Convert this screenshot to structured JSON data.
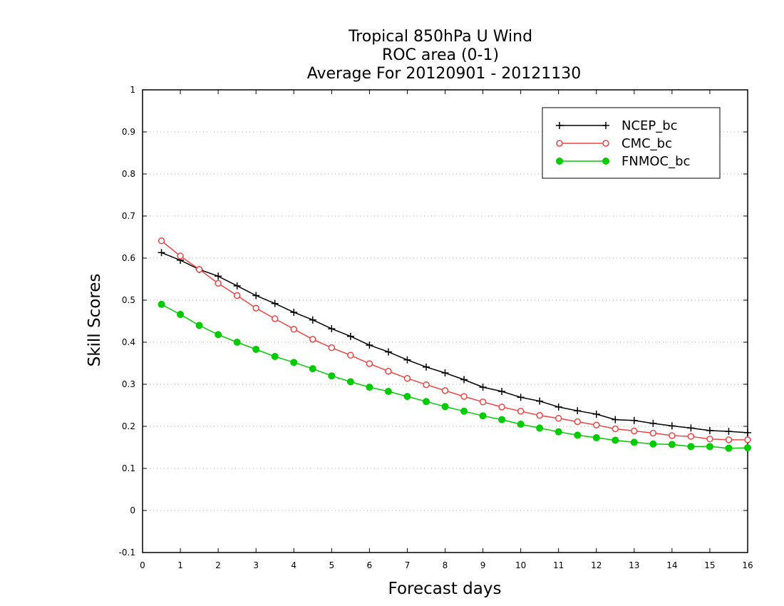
{
  "chart_data": {
    "type": "line",
    "title_lines": [
      "Tropical 850hPa U Wind",
      "ROC area (0-1)",
      "Average For 20120901 - 20121130"
    ],
    "xlabel": "Forecast days",
    "ylabel": "Skill Scores",
    "xlim": [
      0,
      16
    ],
    "ylim": [
      -0.1,
      1
    ],
    "xticks": [
      "0",
      "1",
      "2",
      "3",
      "4",
      "5",
      "6",
      "7",
      "8",
      "9",
      "10",
      "11",
      "12",
      "13",
      "14",
      "15",
      "16"
    ],
    "yticks": [
      "-0.1",
      "0",
      "0.1",
      "0.2",
      "0.3",
      "0.4",
      "0.5",
      "0.6",
      "0.7",
      "0.8",
      "0.9",
      "1"
    ],
    "grid": true,
    "legend_position": "top-right",
    "x": [
      0.5,
      1,
      1.5,
      2,
      2.5,
      3,
      3.5,
      4,
      4.5,
      5,
      5.5,
      6,
      6.5,
      7,
      7.5,
      8,
      8.5,
      9,
      9.5,
      10,
      10.5,
      11,
      11.5,
      12,
      12.5,
      13,
      13.5,
      14,
      14.5,
      15,
      15.5,
      16
    ],
    "series": [
      {
        "name": "NCEP_bc",
        "color": "#000000",
        "marker": "plus",
        "values": [
          0.613,
          0.595,
          0.573,
          0.557,
          0.534,
          0.511,
          0.492,
          0.471,
          0.453,
          0.432,
          0.414,
          0.393,
          0.377,
          0.358,
          0.341,
          0.327,
          0.311,
          0.293,
          0.283,
          0.269,
          0.26,
          0.246,
          0.237,
          0.229,
          0.216,
          0.214,
          0.207,
          0.201,
          0.196,
          0.19,
          0.188,
          0.185
        ]
      },
      {
        "name": "CMC_bc",
        "color": "#ee4444",
        "marker": "open-circle",
        "values": [
          0.641,
          0.605,
          0.573,
          0.54,
          0.511,
          0.481,
          0.456,
          0.431,
          0.407,
          0.387,
          0.369,
          0.349,
          0.331,
          0.314,
          0.299,
          0.285,
          0.271,
          0.258,
          0.246,
          0.236,
          0.226,
          0.219,
          0.211,
          0.203,
          0.194,
          0.189,
          0.184,
          0.178,
          0.176,
          0.17,
          0.168,
          0.168
        ]
      },
      {
        "name": "FNMOC_bc",
        "color": "#00cc00",
        "marker": "filled-circle",
        "values": [
          0.49,
          0.466,
          0.44,
          0.418,
          0.4,
          0.383,
          0.366,
          0.352,
          0.337,
          0.32,
          0.306,
          0.293,
          0.283,
          0.271,
          0.259,
          0.247,
          0.236,
          0.225,
          0.216,
          0.205,
          0.196,
          0.187,
          0.179,
          0.173,
          0.167,
          0.162,
          0.158,
          0.157,
          0.152,
          0.152,
          0.148,
          0.149
        ]
      }
    ]
  }
}
